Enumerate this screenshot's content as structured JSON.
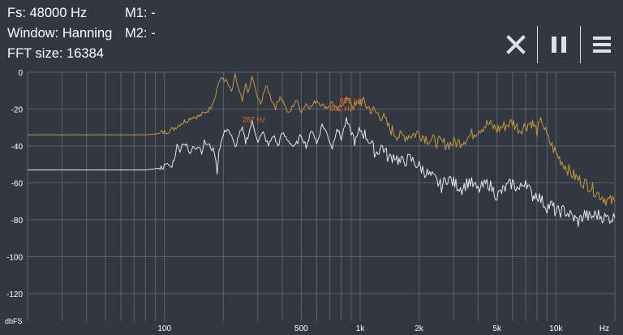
{
  "info": {
    "fs": "Fs: 48000 Hz",
    "window": "Window: Hanning",
    "fft_size": "FFT size: 16384",
    "m1": "M1: -",
    "m2": "M2: -"
  },
  "toolbar": {
    "close_icon": "close-icon",
    "pause_icon": "pause-icon",
    "menu_icon": "menu-icon"
  },
  "colors": {
    "background": "#323841",
    "grid": "#5d636b",
    "axis_text": "#ffffff",
    "series_peak": "#c8973a",
    "series_current": "#e8e8e8",
    "marker_label": "#e06c2c"
  },
  "chart_data": {
    "type": "line",
    "xscale": "log",
    "xlim": [
      20,
      20000
    ],
    "ylim": [
      -135,
      0
    ],
    "grid": true,
    "xunit": "Hz",
    "yunit": "dbFS",
    "x_tick_labels": [
      {
        "value": 100,
        "label": "100"
      },
      {
        "value": 500,
        "label": "500"
      },
      {
        "value": 1000,
        "label": "1k"
      },
      {
        "value": 2000,
        "label": "2k"
      },
      {
        "value": 5000,
        "label": "5k"
      },
      {
        "value": 10000,
        "label": "10k"
      }
    ],
    "y_ticks": [
      0,
      -20,
      -40,
      -60,
      -80,
      -100,
      -120
    ],
    "series": [
      {
        "color": "#c8973a",
        "points": [
          [
            20,
            -34
          ],
          [
            40,
            -34
          ],
          [
            60,
            -34
          ],
          [
            80,
            -34
          ],
          [
            90,
            -33.5
          ],
          [
            100,
            -32.5
          ],
          [
            110,
            -31
          ],
          [
            120,
            -28
          ],
          [
            130,
            -26
          ],
          [
            140,
            -24
          ],
          [
            150,
            -24
          ],
          [
            160,
            -22
          ],
          [
            170,
            -20
          ],
          [
            180,
            -14
          ],
          [
            190,
            -5
          ],
          [
            200,
            -3
          ],
          [
            210,
            -6
          ],
          [
            220,
            -11
          ],
          [
            230,
            -2
          ],
          [
            240,
            -10
          ],
          [
            250,
            -16
          ],
          [
            260,
            -7
          ],
          [
            270,
            -11
          ],
          [
            280,
            -2
          ],
          [
            290,
            -9
          ],
          [
            300,
            -14
          ],
          [
            310,
            -18
          ],
          [
            320,
            -11
          ],
          [
            335,
            -8
          ],
          [
            350,
            -14
          ],
          [
            370,
            -19
          ],
          [
            390,
            -13
          ],
          [
            410,
            -17
          ],
          [
            430,
            -23
          ],
          [
            450,
            -19
          ],
          [
            470,
            -15
          ],
          [
            500,
            -21
          ],
          [
            530,
            -17
          ],
          [
            560,
            -19
          ],
          [
            600,
            -15
          ],
          [
            640,
            -18
          ],
          [
            680,
            -19
          ],
          [
            720,
            -16
          ],
          [
            760,
            -21
          ],
          [
            800,
            -18
          ],
          [
            850,
            -14
          ],
          [
            900,
            -17
          ],
          [
            950,
            -19
          ],
          [
            1000,
            -15
          ],
          [
            1100,
            -19
          ],
          [
            1200,
            -22
          ],
          [
            1300,
            -24
          ],
          [
            1400,
            -30
          ],
          [
            1500,
            -33
          ],
          [
            1600,
            -35
          ],
          [
            1800,
            -34
          ],
          [
            2000,
            -33
          ],
          [
            2200,
            -36
          ],
          [
            2500,
            -38
          ],
          [
            2800,
            -39
          ],
          [
            3200,
            -38
          ],
          [
            3600,
            -35
          ],
          [
            4000,
            -31
          ],
          [
            4500,
            -28
          ],
          [
            5000,
            -31
          ],
          [
            5500,
            -29
          ],
          [
            6000,
            -27
          ],
          [
            6500,
            -31
          ],
          [
            7000,
            -29
          ],
          [
            7500,
            -27
          ],
          [
            8000,
            -32
          ],
          [
            8500,
            -26
          ],
          [
            9000,
            -35
          ],
          [
            10000,
            -44
          ],
          [
            11000,
            -50
          ],
          [
            12000,
            -55
          ],
          [
            13000,
            -58
          ],
          [
            14000,
            -60
          ],
          [
            15000,
            -62
          ],
          [
            16000,
            -65
          ],
          [
            17000,
            -67
          ],
          [
            18000,
            -69
          ],
          [
            19000,
            -70
          ],
          [
            20000,
            -70
          ]
        ]
      },
      {
        "color": "#e8e8e8",
        "points": [
          [
            20,
            -53
          ],
          [
            60,
            -53
          ],
          [
            80,
            -53
          ],
          [
            95,
            -52
          ],
          [
            100,
            -51
          ],
          [
            105,
            -50
          ],
          [
            108,
            -52
          ],
          [
            112,
            -47
          ],
          [
            116,
            -40
          ],
          [
            120,
            -42
          ],
          [
            125,
            -38
          ],
          [
            130,
            -40
          ],
          [
            135,
            -45
          ],
          [
            140,
            -39
          ],
          [
            145,
            -41
          ],
          [
            150,
            -40
          ],
          [
            155,
            -43
          ],
          [
            160,
            -38
          ],
          [
            170,
            -40
          ],
          [
            180,
            -43
          ],
          [
            186,
            -54
          ],
          [
            190,
            -42
          ],
          [
            200,
            -34
          ],
          [
            210,
            -30
          ],
          [
            220,
            -35
          ],
          [
            230,
            -41
          ],
          [
            240,
            -34
          ],
          [
            250,
            -31
          ],
          [
            260,
            -38
          ],
          [
            270,
            -33
          ],
          [
            280,
            -27
          ],
          [
            290,
            -32
          ],
          [
            300,
            -37
          ],
          [
            320,
            -33
          ],
          [
            340,
            -40
          ],
          [
            360,
            -34
          ],
          [
            380,
            -40
          ],
          [
            400,
            -33
          ],
          [
            430,
            -37
          ],
          [
            460,
            -41
          ],
          [
            500,
            -34
          ],
          [
            530,
            -40
          ],
          [
            570,
            -31
          ],
          [
            600,
            -39
          ],
          [
            640,
            -28
          ],
          [
            680,
            -34
          ],
          [
            720,
            -41
          ],
          [
            760,
            -30
          ],
          [
            800,
            -36
          ],
          [
            850,
            -26
          ],
          [
            900,
            -33
          ],
          [
            950,
            -38
          ],
          [
            1000,
            -31
          ],
          [
            1100,
            -36
          ],
          [
            1200,
            -44
          ],
          [
            1300,
            -40
          ],
          [
            1400,
            -47
          ],
          [
            1500,
            -45
          ],
          [
            1600,
            -49
          ],
          [
            1800,
            -47
          ],
          [
            2000,
            -51
          ],
          [
            2200,
            -55
          ],
          [
            2400,
            -58
          ],
          [
            2600,
            -62
          ],
          [
            2800,
            -57
          ],
          [
            3000,
            -60
          ],
          [
            3300,
            -63
          ],
          [
            3600,
            -59
          ],
          [
            4000,
            -64
          ],
          [
            4500,
            -60
          ],
          [
            5000,
            -67
          ],
          [
            5500,
            -63
          ],
          [
            6000,
            -60
          ],
          [
            6500,
            -64
          ],
          [
            7000,
            -58
          ],
          [
            7500,
            -67
          ],
          [
            8000,
            -66
          ],
          [
            8500,
            -70
          ],
          [
            9000,
            -73
          ],
          [
            9500,
            -72
          ],
          [
            10000,
            -76
          ],
          [
            11000,
            -75
          ],
          [
            12000,
            -78
          ],
          [
            13000,
            -81
          ],
          [
            14000,
            -77
          ],
          [
            15000,
            -79
          ],
          [
            16000,
            -77
          ],
          [
            17000,
            -78
          ],
          [
            18000,
            -79
          ],
          [
            20000,
            -79
          ]
        ]
      }
    ],
    "markers": [
      {
        "x": 287,
        "y": -27,
        "label": "287 Hz"
      },
      {
        "x": 899,
        "y": -17,
        "label": "899 Hz"
      },
      {
        "x": 802,
        "y": -21,
        "label": "802 Hz"
      }
    ]
  }
}
